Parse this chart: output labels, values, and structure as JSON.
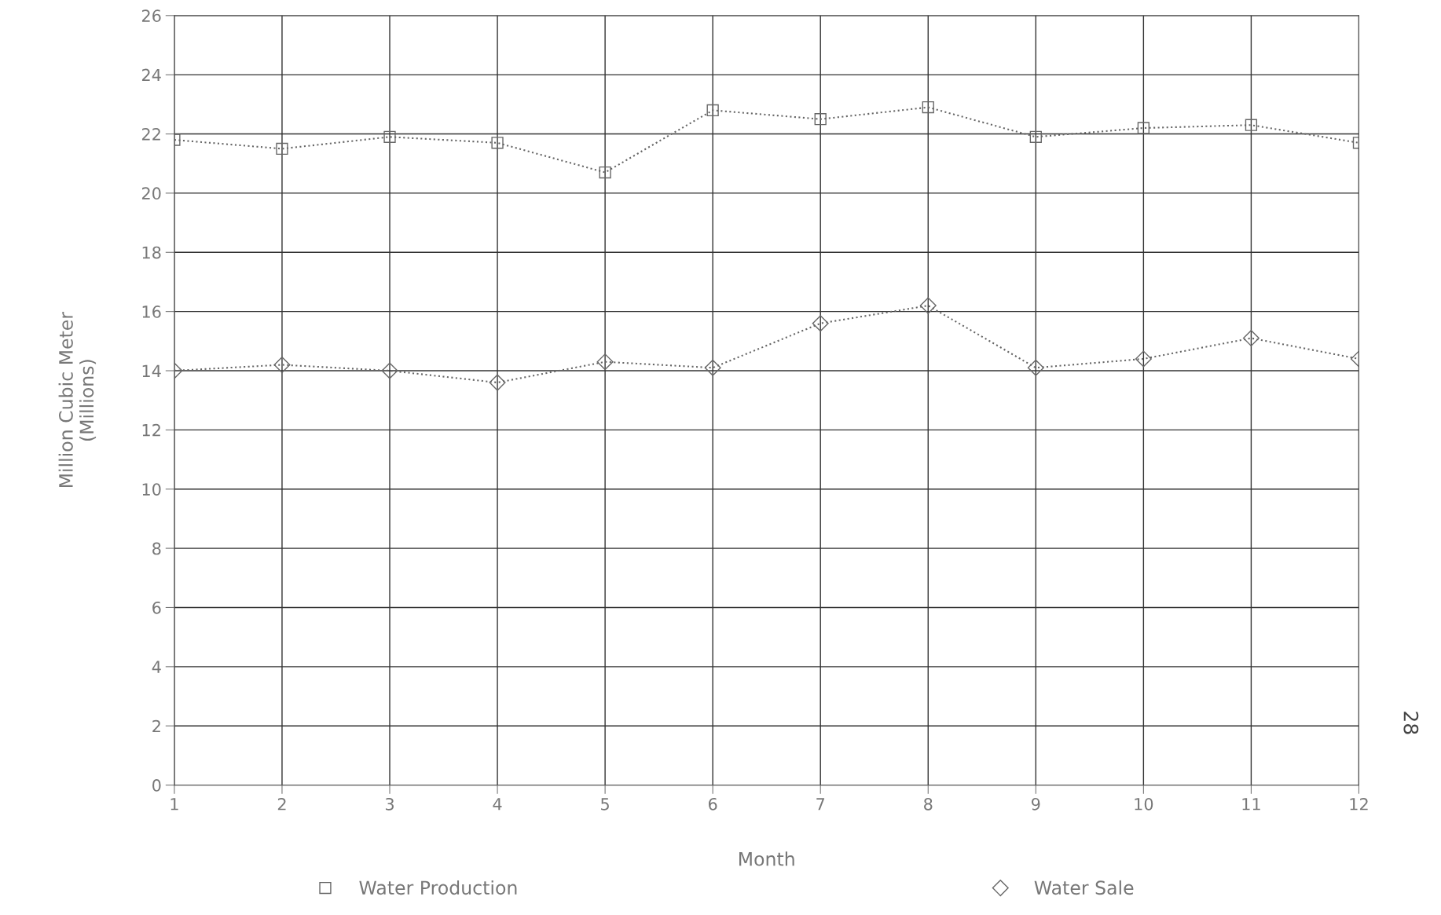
{
  "chart_data": {
    "type": "line",
    "xlabel": "Month",
    "ylabel": "Million Cubic Meter\n(Millions)",
    "x": [
      1,
      2,
      3,
      4,
      5,
      6,
      7,
      8,
      9,
      10,
      11,
      12
    ],
    "series": [
      {
        "name": "Water Production",
        "color": "#666666",
        "marker": "square",
        "values": [
          21.8,
          21.5,
          21.9,
          21.7,
          20.7,
          22.8,
          22.5,
          22.9,
          21.9,
          22.2,
          22.3,
          21.7
        ]
      },
      {
        "name": "Water Sale",
        "color": "#666666",
        "marker": "diamond",
        "values": [
          14.0,
          14.2,
          14.0,
          13.6,
          14.3,
          14.1,
          15.6,
          16.2,
          14.1,
          14.4,
          15.1,
          14.4
        ]
      }
    ],
    "xlim": [
      1,
      12
    ],
    "xticks": [
      1,
      2,
      3,
      4,
      5,
      6,
      7,
      8,
      9,
      10,
      11,
      12
    ],
    "ylim": [
      0,
      26
    ],
    "yticks": [
      0,
      2,
      4,
      6,
      8,
      10,
      12,
      14,
      16,
      18,
      20,
      22,
      24,
      26
    ],
    "grid": true,
    "legend": "bottom",
    "line_style": "dotted",
    "annotations": [
      "28"
    ]
  }
}
